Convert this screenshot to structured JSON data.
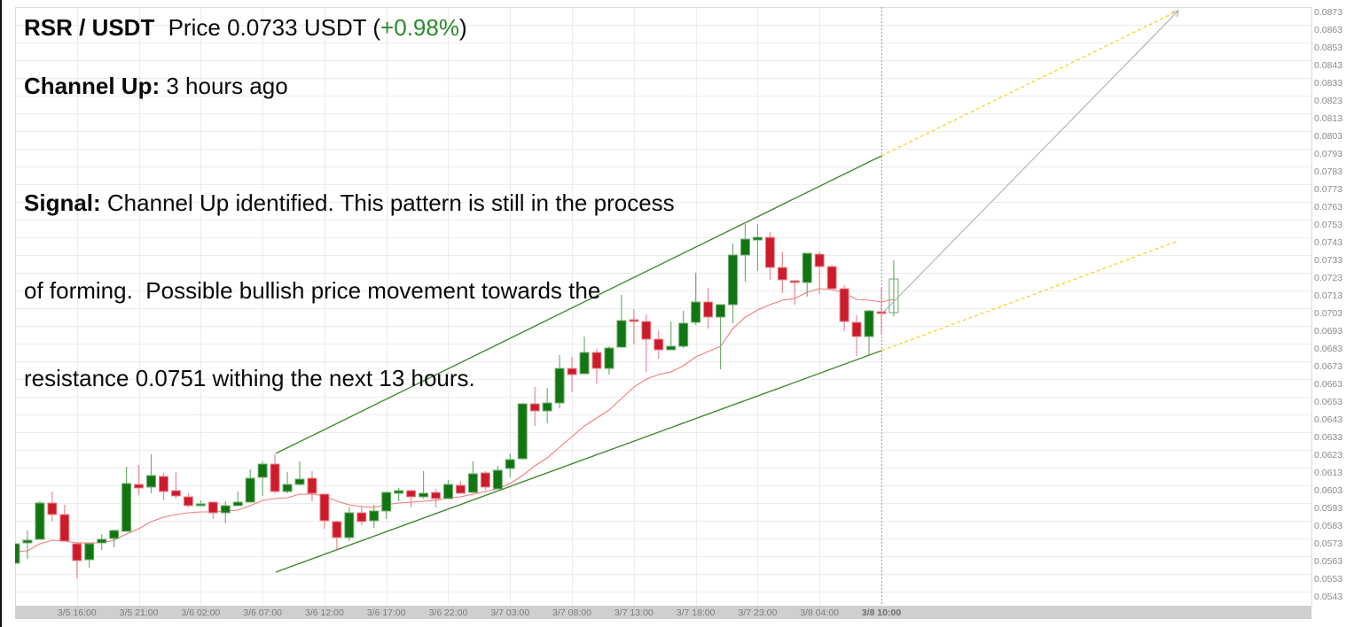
{
  "header": {
    "pair": "RSR / USDT",
    "price_label": "Price",
    "price": "0.0733",
    "currency": "USDT",
    "paren_open": "(",
    "change": "+0.98%",
    "paren_close": ")"
  },
  "pattern": {
    "label": "Channel Up:",
    "time": "3 hours ago"
  },
  "signal": {
    "label": "Signal:",
    "lines": [
      "Channel Up identified. This pattern is still in the process",
      "of forming.  Possible bullish price movement towards the",
      "resistance 0.0751 withing the next 13 hours."
    ]
  },
  "colors": {
    "up_fill": "#127512",
    "up_stroke": "#72b072",
    "down_fill": "#cc1b2b",
    "down_stroke": "#e88a93",
    "hollow_stroke": "#6cae6c",
    "change_positive": "#2b8a2b",
    "ma": "#f27a7a",
    "channel": "#3d8b2d",
    "projection": "#f5d327",
    "target_arrow": "#a8a8a8",
    "grid": "#ececec",
    "border": "#dcdcdc",
    "axis_bar": "#cfcfcf",
    "axis_text": "#8a8a8a",
    "crosshair": "#9a9a9a"
  },
  "chart_data": {
    "type": "candlestick",
    "title": "RSR / USDT",
    "xlabel": "",
    "ylabel": "",
    "xlim": [
      0,
      104.75
    ],
    "ylim": [
      0.0535,
      0.0873
    ],
    "grid": true,
    "legend": null,
    "y_ticks": [
      "0.0873",
      "0.0863",
      "0.0853",
      "0.0843",
      "0.0833",
      "0.0823",
      "0.0813",
      "0.0803",
      "0.0793",
      "0.0783",
      "0.0773",
      "0.0763",
      "0.0753",
      "0.0743",
      "0.0733",
      "0.0723",
      "0.0713",
      "0.0703",
      "0.0693",
      "0.0683",
      "0.0673",
      "0.0663",
      "0.0653",
      "0.0643",
      "0.0633",
      "0.0623",
      "0.0613",
      "0.0603",
      "0.0593",
      "0.0583",
      "0.0573",
      "0.0563",
      "0.0553",
      "0.0543"
    ],
    "x_ticks": [
      {
        "i": 5,
        "label": "3/5 16:00"
      },
      {
        "i": 10,
        "label": "3/5 21:00"
      },
      {
        "i": 15,
        "label": "3/6 02:00"
      },
      {
        "i": 20,
        "label": "3/6 07:00"
      },
      {
        "i": 25,
        "label": "3/6 12:00"
      },
      {
        "i": 30,
        "label": "3/6 17:00"
      },
      {
        "i": 35,
        "label": "3/6 22:00"
      },
      {
        "i": 40,
        "label": "3/7 03:00"
      },
      {
        "i": 45,
        "label": "3/7 08:00"
      },
      {
        "i": 50,
        "label": "3/7 13:00"
      },
      {
        "i": 55,
        "label": "3/7 18:00"
      },
      {
        "i": 60,
        "label": "3/7 23:00"
      },
      {
        "i": 65,
        "label": "3/8 04:00"
      }
    ],
    "crosshair": {
      "i": 70,
      "label": "3/8 10:00"
    },
    "candles_ohlc": [
      [
        0.0559,
        0.057,
        0.0559,
        0.057
      ],
      [
        0.05705,
        0.05775,
        0.05615,
        0.0572
      ],
      [
        0.05725,
        0.0594,
        0.05725,
        0.0593
      ],
      [
        0.0593,
        0.05995,
        0.05825,
        0.05865
      ],
      [
        0.05865,
        0.0592,
        0.05715,
        0.05715
      ],
      [
        0.057,
        0.057,
        0.05505,
        0.05605
      ],
      [
        0.0561,
        0.05705,
        0.05565,
        0.057
      ],
      [
        0.05705,
        0.05755,
        0.05665,
        0.05725
      ],
      [
        0.0573,
        0.0578,
        0.0568,
        0.05775
      ],
      [
        0.0577,
        0.06135,
        0.0577,
        0.0604
      ],
      [
        0.06035,
        0.06145,
        0.05975,
        0.06015
      ],
      [
        0.0602,
        0.06205,
        0.05985,
        0.06085
      ],
      [
        0.0608,
        0.061,
        0.05945,
        0.05995
      ],
      [
        0.06,
        0.06105,
        0.05955,
        0.0597
      ],
      [
        0.05965,
        0.05985,
        0.05905,
        0.05915
      ],
      [
        0.05915,
        0.05945,
        0.0591,
        0.05925
      ],
      [
        0.05935,
        0.05935,
        0.0584,
        0.05875
      ],
      [
        0.05875,
        0.0594,
        0.05815,
        0.05915
      ],
      [
        0.05915,
        0.05995,
        0.05915,
        0.05935
      ],
      [
        0.05935,
        0.0612,
        0.05935,
        0.0607
      ],
      [
        0.06075,
        0.06165,
        0.0597,
        0.0615
      ],
      [
        0.0615,
        0.06205,
        0.05985,
        0.05995
      ],
      [
        0.05995,
        0.06105,
        0.05985,
        0.06035
      ],
      [
        0.06035,
        0.06165,
        0.0603,
        0.06065
      ],
      [
        0.0607,
        0.0611,
        0.0594,
        0.05985
      ],
      [
        0.0598,
        0.0598,
        0.05785,
        0.0583
      ],
      [
        0.05825,
        0.0583,
        0.0567,
        0.05735
      ],
      [
        0.05735,
        0.05905,
        0.05715,
        0.05875
      ],
      [
        0.05875,
        0.05915,
        0.05805,
        0.05825
      ],
      [
        0.0583,
        0.0592,
        0.0579,
        0.05885
      ],
      [
        0.05885,
        0.05995,
        0.0584,
        0.0599
      ],
      [
        0.05985,
        0.06015,
        0.0594,
        0.06
      ],
      [
        0.06,
        0.06005,
        0.05905,
        0.05965
      ],
      [
        0.05965,
        0.0611,
        0.05955,
        0.05985
      ],
      [
        0.0599,
        0.0601,
        0.05905,
        0.05955
      ],
      [
        0.05955,
        0.0606,
        0.05955,
        0.06035
      ],
      [
        0.0603,
        0.06055,
        0.05985,
        0.05985
      ],
      [
        0.0599,
        0.06165,
        0.0599,
        0.06095
      ],
      [
        0.061,
        0.0611,
        0.06005,
        0.0602
      ],
      [
        0.0601,
        0.0614,
        0.0601,
        0.06115
      ],
      [
        0.06125,
        0.0621,
        0.06075,
        0.06175
      ],
      [
        0.0618,
        0.06495,
        0.06175,
        0.0649
      ],
      [
        0.0649,
        0.06585,
        0.06365,
        0.0645
      ],
      [
        0.0645,
        0.0658,
        0.0638,
        0.06495
      ],
      [
        0.06495,
        0.06765,
        0.06465,
        0.0669
      ],
      [
        0.0669,
        0.06755,
        0.06555,
        0.06655
      ],
      [
        0.0666,
        0.0687,
        0.0666,
        0.0678
      ],
      [
        0.0678,
        0.068,
        0.06605,
        0.0669
      ],
      [
        0.0669,
        0.06815,
        0.06655,
        0.06805
      ],
      [
        0.0681,
        0.07105,
        0.0681,
        0.0696
      ],
      [
        0.06965,
        0.07025,
        0.06825,
        0.06955
      ],
      [
        0.06955,
        0.06995,
        0.0667,
        0.06855
      ],
      [
        0.06855,
        0.06905,
        0.06745,
        0.06795
      ],
      [
        0.06795,
        0.06955,
        0.06795,
        0.06815
      ],
      [
        0.06815,
        0.07015,
        0.06805,
        0.06945
      ],
      [
        0.0695,
        0.0723,
        0.06935,
        0.07065
      ],
      [
        0.07065,
        0.07145,
        0.06915,
        0.0698
      ],
      [
        0.0698,
        0.0705,
        0.06685,
        0.0705
      ],
      [
        0.0705,
        0.07395,
        0.06945,
        0.0733
      ],
      [
        0.0733,
        0.07505,
        0.0718,
        0.0742
      ],
      [
        0.07415,
        0.07505,
        0.0724,
        0.0743
      ],
      [
        0.0743,
        0.0746,
        0.0719,
        0.0726
      ],
      [
        0.0726,
        0.0735,
        0.07115,
        0.0719
      ],
      [
        0.07185,
        0.07185,
        0.0705,
        0.0718
      ],
      [
        0.07175,
        0.0734,
        0.07095,
        0.0734
      ],
      [
        0.07335,
        0.0735,
        0.0711,
        0.07265
      ],
      [
        0.07265,
        0.07275,
        0.07135,
        0.0714
      ],
      [
        0.0714,
        0.0716,
        0.069,
        0.06955
      ],
      [
        0.0695,
        0.0699,
        0.0676,
        0.0687
      ],
      [
        0.0687,
        0.0702,
        0.06765,
        0.07015
      ],
      [
        0.0701,
        0.07145,
        0.06885,
        0.07005
      ],
      [
        0.07005,
        0.073,
        0.06985,
        0.07195
      ]
    ],
    "last_candle_hollow": true,
    "moving_average": [
      0.05655,
      0.0566,
      0.057,
      0.0572,
      0.05715,
      0.05705,
      0.05705,
      0.05705,
      0.0572,
      0.05755,
      0.05785,
      0.05825,
      0.0585,
      0.05865,
      0.05875,
      0.0588,
      0.0588,
      0.05885,
      0.0589,
      0.05915,
      0.05945,
      0.05955,
      0.0596,
      0.0598,
      0.0598,
      0.0597,
      0.0594,
      0.0592,
      0.0591,
      0.05905,
      0.0592,
      0.0593,
      0.05935,
      0.0594,
      0.05945,
      0.0596,
      0.05965,
      0.0598,
      0.05995,
      0.0601,
      0.0604,
      0.06085,
      0.0614,
      0.06185,
      0.06245,
      0.06305,
      0.06365,
      0.0641,
      0.06455,
      0.0652,
      0.06585,
      0.0663,
      0.06655,
      0.0667,
      0.06705,
      0.06755,
      0.06785,
      0.06815,
      0.06915,
      0.0698,
      0.0702,
      0.0705,
      0.07075,
      0.07085,
      0.0712,
      0.0714,
      0.07135,
      0.07115,
      0.0708,
      0.07075,
      0.07065,
      0.0708
    ],
    "channel_lines": [
      {
        "name": "channel-upper",
        "from": [
          21.07,
          0.0621
        ],
        "to": [
          70,
          0.0789
        ]
      },
      {
        "name": "channel-lower",
        "from": [
          21.07,
          0.0554
        ],
        "to": [
          70,
          0.0679
        ]
      }
    ],
    "projection_lines": [
      {
        "name": "projection-upper",
        "from": [
          70,
          0.0789
        ],
        "to": [
          94,
          0.0871
        ]
      },
      {
        "name": "projection-lower",
        "from": [
          70,
          0.0679
        ],
        "to": [
          94,
          0.0741
        ]
      }
    ],
    "target_arrow": {
      "from": [
        70.2,
        0.0701
      ],
      "to": [
        94,
        0.0871
      ]
    }
  }
}
